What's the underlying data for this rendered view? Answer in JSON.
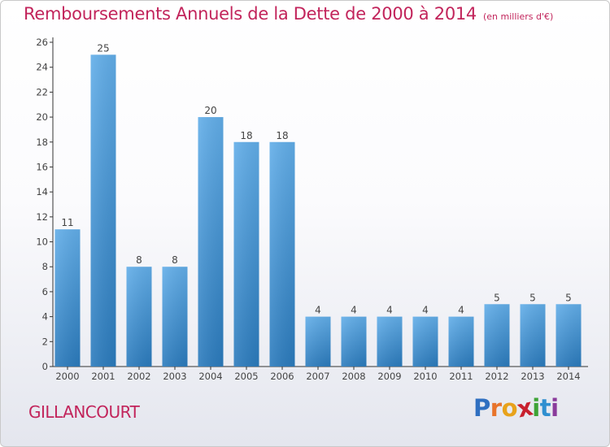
{
  "header": {
    "title": "Remboursements Annuels de la Dette de 2000 à 2014",
    "unit_note": "(en milliers d'€)"
  },
  "footer": {
    "commune": "GILLANCOURT",
    "logo_letters": [
      "P",
      "r",
      "o",
      "x",
      "i",
      "t",
      "i"
    ],
    "logo_colors": [
      "#2f6fc0",
      "#e8742b",
      "#e8a21b",
      "#c8202e",
      "#3ea336",
      "#2f8fd0",
      "#8a3b9b"
    ]
  },
  "colors": {
    "title": "#c2245b",
    "bar_top": "#62aee9",
    "bar_bottom": "#2b7bbd",
    "axis": "#333333"
  },
  "chart_data": {
    "type": "bar",
    "title": "Remboursements Annuels de la Dette de 2000 à 2014",
    "subtitle": "(en milliers d'€)",
    "categories": [
      "2000",
      "2001",
      "2002",
      "2003",
      "2004",
      "2005",
      "2006",
      "2007",
      "2008",
      "2009",
      "2010",
      "2011",
      "2012",
      "2013",
      "2014"
    ],
    "values": [
      11,
      25,
      8,
      8,
      20,
      18,
      18,
      4,
      4,
      4,
      4,
      4,
      5,
      5,
      5
    ],
    "ylim": [
      0,
      26
    ],
    "yticks": [
      0,
      2,
      4,
      6,
      8,
      10,
      12,
      14,
      16,
      18,
      20,
      22,
      24,
      26
    ],
    "grid": false,
    "legend": "none"
  }
}
